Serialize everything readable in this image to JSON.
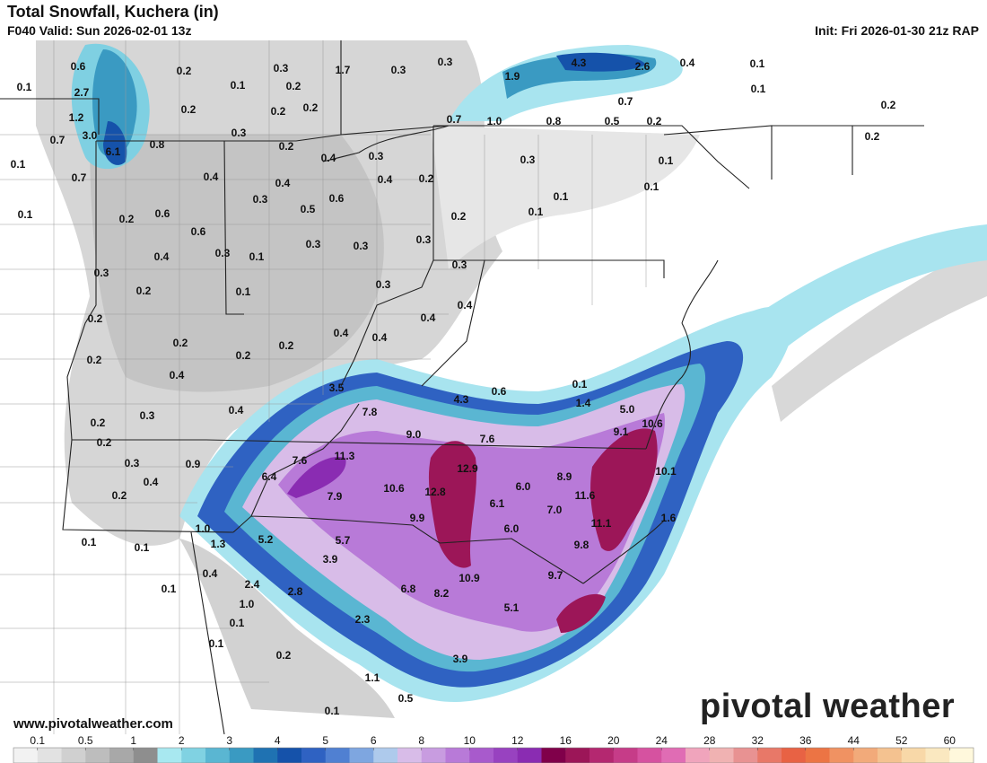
{
  "header": {
    "title": "Total Snowfall, Kuchera (in)",
    "valid": "F040 Valid: Sun 2026-02-01 13z",
    "init": "Init: Fri 2026-01-30 21z RAP"
  },
  "map": {
    "labels": [
      "0.6",
      "2.7",
      "0.1",
      "1.2",
      "3.0",
      "0.7",
      "6.1",
      "0.8",
      "0.1",
      "0.7",
      "0.1",
      "0.2",
      "0.1",
      "0.3",
      "0.2",
      "1.7",
      "0.3",
      "0.3",
      "0.2",
      "0.2",
      "0.2",
      "0.3",
      "0.2",
      "0.4",
      "0.3",
      "0.4",
      "0.4",
      "0.4",
      "0.2",
      "0.3",
      "0.6",
      "0.5",
      "0.2",
      "0.6",
      "0.6",
      "0.4",
      "0.3",
      "0.1",
      "0.3",
      "0.3",
      "0.3",
      "0.3",
      "0.2",
      "0.1",
      "0.3",
      "0.2",
      "0.2",
      "0.4",
      "0.4",
      "0.4",
      "0.2",
      "0.2",
      "0.2",
      "0.4",
      "0.3",
      "0.2",
      "0.2",
      "0.4",
      "3.5",
      "7.8",
      "4.3",
      "0.6",
      "0.1",
      "1.4",
      "5.0",
      "10.6",
      "9.0",
      "7.6",
      "9.1",
      "0.3",
      "0.9",
      "7.6",
      "11.3",
      "12.9",
      "6.4",
      "8.9",
      "10.1",
      "0.4",
      "6.0",
      "0.2",
      "7.9",
      "10.6",
      "12.8",
      "6.1",
      "11.6",
      "7.0",
      "11.1",
      "9.9",
      "1.6",
      "1.0",
      "6.0",
      "5.2",
      "5.7",
      "1.3",
      "0.1",
      "0.1",
      "9.8",
      "3.9",
      "0.4",
      "9.7",
      "10.9",
      "0.1",
      "2.4",
      "2.8",
      "6.8",
      "8.2",
      "1.0",
      "5.1",
      "0.1",
      "2.3",
      "0.1",
      "0.2",
      "3.9",
      "1.1",
      "0.5",
      "0.1",
      "1.9",
      "4.3",
      "2.6",
      "0.4",
      "0.1",
      "0.1",
      "0.7",
      "0.7",
      "1.0",
      "0.8",
      "0.5",
      "0.2",
      "0.3",
      "0.1",
      "0.1",
      "0.1",
      "0.1",
      "0.2",
      "0.3",
      "0.4",
      "0.2",
      "0.2"
    ]
  },
  "watermark": "www.pivotalweather.com",
  "logo": "pivotal weather",
  "legend": {
    "ticks": [
      0.1,
      0.5,
      1,
      2,
      3,
      4,
      5,
      6,
      8,
      10,
      12,
      16,
      20,
      24,
      28,
      32,
      36,
      44,
      52,
      60
    ],
    "colors": [
      "#f2f2f2",
      "#e2e2e2",
      "#d0d0d0",
      "#bdbdbd",
      "#a8a8a8",
      "#8e8e8e",
      "#a8e8f0",
      "#80d2e2",
      "#5ab6d2",
      "#3a9ac2",
      "#1f72b2",
      "#1552aa",
      "#2f62c2",
      "#5080d2",
      "#7ea6e0",
      "#aecaec",
      "#d8bce8",
      "#c89ce0",
      "#b87ad8",
      "#a85acc",
      "#9842c0",
      "#8a2cb2",
      "#80004a",
      "#9c1658",
      "#b42870",
      "#c63c88",
      "#d652a0",
      "#e06cb4",
      "#f0a4bc",
      "#f0b2b2",
      "#e89292",
      "#e87868",
      "#e86244",
      "#ec7444",
      "#f09262",
      "#f2aa7a",
      "#f4c290",
      "#f8d8a8",
      "#fae8c0",
      "#fff8dc"
    ]
  }
}
